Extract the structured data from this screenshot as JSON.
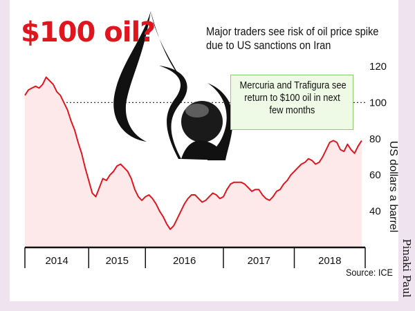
{
  "headline": "$100 oil?",
  "subtitle_lines": [
    "Major traders see risk of oil price spike",
    "due to US sanctions on Iran"
  ],
  "callout_lines": [
    "Mercuria and Trafigura see",
    "return to $100 oil in next",
    "few months"
  ],
  "source": "Source: ICE",
  "credit": "Pinaki Paul",
  "colors": {
    "headline": "#e0161e",
    "line": "#e0161e",
    "area": "#fde8ea",
    "callout_bg": "#effae6",
    "callout_border": "#8bcf6a",
    "frame": "#efe3f0"
  },
  "logo_icon": "oil-drop-road-logo",
  "chart_data": {
    "type": "area",
    "ylabel": "US dollars a barrel",
    "ylim": [
      20,
      120
    ],
    "yticks": [
      40,
      60,
      80,
      100,
      120
    ],
    "x_categories": [
      "2014",
      "2015",
      "2016",
      "2017",
      "2018"
    ],
    "xlim": [
      2014.0,
      2018.8
    ],
    "grid": "dotted horizontal line at 100",
    "series": [
      {
        "points": [
          [
            2014.0,
            104
          ],
          [
            2014.05,
            107
          ],
          [
            2014.1,
            108
          ],
          [
            2014.15,
            109
          ],
          [
            2014.2,
            108
          ],
          [
            2014.25,
            110
          ],
          [
            2014.3,
            114
          ],
          [
            2014.35,
            112
          ],
          [
            2014.4,
            110
          ],
          [
            2014.45,
            106
          ],
          [
            2014.5,
            104
          ],
          [
            2014.55,
            100
          ],
          [
            2014.6,
            96
          ],
          [
            2014.65,
            90
          ],
          [
            2014.7,
            85
          ],
          [
            2014.75,
            78
          ],
          [
            2014.8,
            72
          ],
          [
            2014.85,
            64
          ],
          [
            2014.9,
            57
          ],
          [
            2014.95,
            50
          ],
          [
            2015.0,
            48
          ],
          [
            2015.05,
            53
          ],
          [
            2015.1,
            58
          ],
          [
            2015.15,
            57
          ],
          [
            2015.2,
            60
          ],
          [
            2015.25,
            62
          ],
          [
            2015.3,
            65
          ],
          [
            2015.35,
            66
          ],
          [
            2015.4,
            64
          ],
          [
            2015.45,
            62
          ],
          [
            2015.5,
            58
          ],
          [
            2015.55,
            52
          ],
          [
            2015.6,
            48
          ],
          [
            2015.65,
            46
          ],
          [
            2015.7,
            48
          ],
          [
            2015.75,
            49
          ],
          [
            2015.8,
            47
          ],
          [
            2015.85,
            44
          ],
          [
            2015.9,
            40
          ],
          [
            2015.95,
            37
          ],
          [
            2016.0,
            33
          ],
          [
            2016.05,
            30
          ],
          [
            2016.1,
            32
          ],
          [
            2016.15,
            36
          ],
          [
            2016.2,
            40
          ],
          [
            2016.25,
            44
          ],
          [
            2016.3,
            47
          ],
          [
            2016.35,
            49
          ],
          [
            2016.4,
            49
          ],
          [
            2016.45,
            47
          ],
          [
            2016.5,
            45
          ],
          [
            2016.55,
            46
          ],
          [
            2016.6,
            48
          ],
          [
            2016.65,
            50
          ],
          [
            2016.7,
            49
          ],
          [
            2016.75,
            47
          ],
          [
            2016.8,
            48
          ],
          [
            2016.85,
            52
          ],
          [
            2016.9,
            55
          ],
          [
            2016.95,
            56
          ],
          [
            2017.0,
            56
          ],
          [
            2017.05,
            56
          ],
          [
            2017.1,
            55
          ],
          [
            2017.15,
            53
          ],
          [
            2017.2,
            51
          ],
          [
            2017.25,
            52
          ],
          [
            2017.3,
            52
          ],
          [
            2017.35,
            49
          ],
          [
            2017.4,
            47
          ],
          [
            2017.45,
            46
          ],
          [
            2017.5,
            48
          ],
          [
            2017.55,
            51
          ],
          [
            2017.6,
            52
          ],
          [
            2017.65,
            55
          ],
          [
            2017.7,
            57
          ],
          [
            2017.75,
            60
          ],
          [
            2017.8,
            62
          ],
          [
            2017.85,
            64
          ],
          [
            2017.9,
            66
          ],
          [
            2017.95,
            67
          ],
          [
            2018.0,
            69
          ],
          [
            2018.05,
            68
          ],
          [
            2018.1,
            66
          ],
          [
            2018.15,
            67
          ],
          [
            2018.2,
            70
          ],
          [
            2018.25,
            74
          ],
          [
            2018.3,
            78
          ],
          [
            2018.35,
            79
          ],
          [
            2018.4,
            78
          ],
          [
            2018.45,
            74
          ],
          [
            2018.5,
            73
          ],
          [
            2018.55,
            77
          ],
          [
            2018.6,
            74
          ],
          [
            2018.65,
            72
          ],
          [
            2018.7,
            76
          ],
          [
            2018.75,
            79
          ]
        ]
      }
    ]
  }
}
